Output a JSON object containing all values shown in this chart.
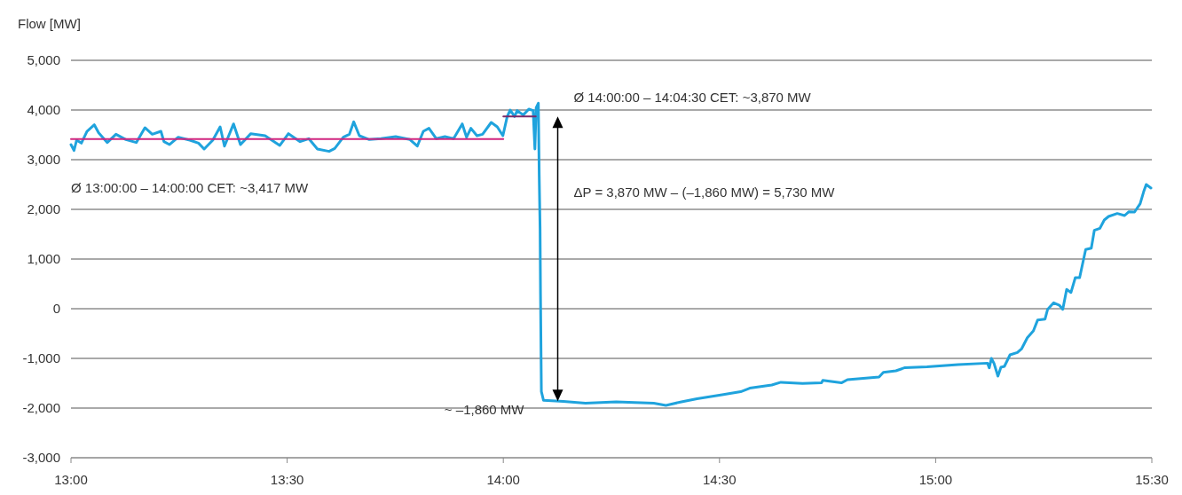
{
  "chart_data": {
    "type": "line",
    "ylabel": "Flow [MW]",
    "xlim": [
      13,
      15.5
    ],
    "xticks": [
      {
        "value": 13,
        "label": "13:00"
      },
      {
        "value": 13.5,
        "label": "13:30"
      },
      {
        "value": 14,
        "label": "14:00"
      },
      {
        "value": 14.5,
        "label": "14:30"
      },
      {
        "value": 15,
        "label": "15:00"
      },
      {
        "value": 15.5,
        "label": "15:30"
      }
    ],
    "ylim": [
      -3000,
      5000
    ],
    "yticks": [
      {
        "value": -3000,
        "label": "-3,000"
      },
      {
        "value": -2000,
        "label": "-2,000"
      },
      {
        "value": -1000,
        "label": "-1,000"
      },
      0,
      {
        "value": 1000,
        "label": "1,000"
      },
      {
        "value": 2000,
        "label": "2,000"
      },
      {
        "value": 3000,
        "label": "3,000"
      },
      {
        "value": 4000,
        "label": "4,000"
      },
      {
        "value": 5000,
        "label": "5,000"
      }
    ],
    "grid": "y",
    "series": [
      {
        "color": "#1fa3dd",
        "x": [
          13.0,
          13.007,
          13.013,
          13.024,
          13.037,
          13.054,
          13.064,
          13.084,
          13.104,
          13.127,
          13.151,
          13.171,
          13.188,
          13.208,
          13.215,
          13.228,
          13.248,
          13.275,
          13.295,
          13.308,
          13.328,
          13.345,
          13.355,
          13.376,
          13.392,
          13.416,
          13.449,
          13.483,
          13.503,
          13.53,
          13.55,
          13.57,
          13.597,
          13.61,
          13.63,
          13.644,
          13.654,
          13.667,
          13.69,
          13.717,
          13.751,
          13.784,
          13.801,
          13.815,
          13.828,
          13.845,
          13.865,
          13.885,
          13.905,
          13.915,
          13.925,
          13.939,
          13.952,
          13.972,
          13.986,
          13.999,
          14.009,
          14.016,
          14.026,
          14.032,
          14.046,
          14.059,
          14.069,
          14.073,
          14.076,
          14.081,
          14.083,
          14.085,
          14.086,
          14.088,
          14.093,
          14.139,
          14.19,
          14.261,
          14.348,
          14.376,
          14.412,
          14.448,
          14.506,
          14.549,
          14.57,
          14.621,
          14.642,
          14.692,
          14.736,
          14.739,
          14.782,
          14.796,
          14.869,
          14.879,
          14.908,
          14.929,
          14.98,
          15.052,
          15.12,
          15.124,
          15.129,
          15.135,
          15.144,
          15.151,
          15.159,
          15.172,
          15.189,
          15.199,
          15.212,
          15.226,
          15.236,
          15.253,
          15.259,
          15.273,
          15.286,
          15.294,
          15.303,
          15.313,
          15.323,
          15.333,
          15.347,
          15.36,
          15.367,
          15.38,
          15.39,
          15.4,
          15.42,
          15.437,
          15.447,
          15.46,
          15.473,
          15.481,
          15.487,
          15.498
        ],
        "values": [
          3304,
          3184,
          3393,
          3333,
          3571,
          3702,
          3541,
          3345,
          3512,
          3405,
          3345,
          3643,
          3512,
          3571,
          3363,
          3304,
          3452,
          3393,
          3333,
          3214,
          3393,
          3661,
          3273,
          3720,
          3304,
          3524,
          3482,
          3286,
          3524,
          3363,
          3423,
          3214,
          3167,
          3226,
          3452,
          3512,
          3762,
          3482,
          3405,
          3423,
          3464,
          3405,
          3273,
          3571,
          3631,
          3423,
          3464,
          3423,
          3720,
          3452,
          3631,
          3482,
          3512,
          3750,
          3661,
          3482,
          3869,
          4000,
          3869,
          3988,
          3899,
          4018,
          3988,
          3214,
          4048,
          4137,
          2679,
          1607,
          298,
          -1667,
          -1845,
          -1868,
          -1900,
          -1875,
          -1900,
          -1945,
          -1875,
          -1811,
          -1734,
          -1671,
          -1600,
          -1536,
          -1480,
          -1505,
          -1493,
          -1441,
          -1493,
          -1429,
          -1375,
          -1282,
          -1250,
          -1186,
          -1168,
          -1123,
          -1096,
          -1190,
          -1000,
          -1101,
          -1357,
          -1179,
          -1161,
          -929,
          -881,
          -804,
          -584,
          -446,
          -226,
          -208,
          -12,
          119,
          71,
          -12,
          387,
          327,
          625,
          625,
          1191,
          1220,
          1577,
          1620,
          1786,
          1857,
          1917,
          1875,
          1952,
          1946,
          2113,
          2351,
          2500,
          2429
        ]
      },
      {
        "color": "#d0267f",
        "x": [
          13,
          14
        ],
        "values": [
          3417,
          3417
        ]
      },
      {
        "color": "#7a2a6a",
        "x": [
          14,
          14.075
        ],
        "values": [
          3870,
          3870
        ]
      }
    ],
    "annotations": [
      "Ø 13:00:00 – 14:00:00 CET: ~3,417 MW",
      "Ø 14:00:00 – 14:04:30 CET: ~3,870 MW",
      "ΔP = 3,870 MW – (–1,860 MW) = 5,730 MW",
      {
        "text": "~ –1,860 MW",
        "x": 14.093,
        "y": -1860
      }
    ]
  }
}
